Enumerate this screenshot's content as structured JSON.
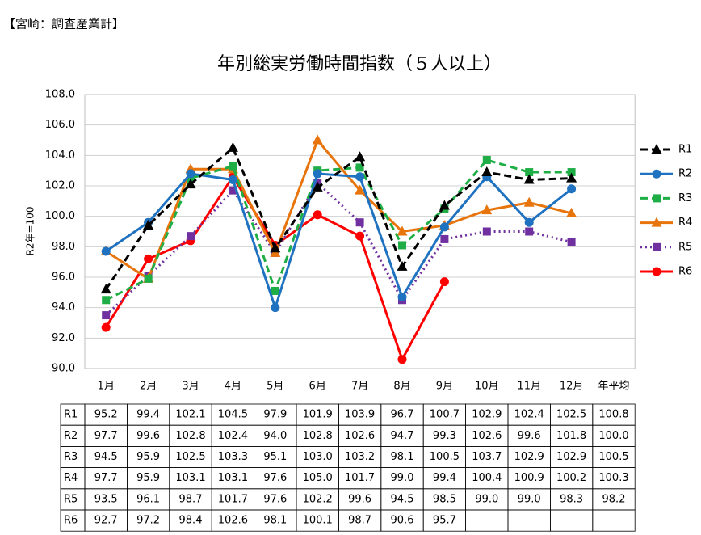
{
  "header": {
    "title": "【宮崎：調査産業計】"
  },
  "chart_data": {
    "type": "line",
    "title": "年別総実労働時間指数（５人以上）",
    "y_label": "R2年=100",
    "categories": [
      "1月",
      "2月",
      "3月",
      "4月",
      "5月",
      "6月",
      "7月",
      "8月",
      "9月",
      "10月",
      "11月",
      "12月"
    ],
    "average_label": "年平均",
    "ylim": [
      90,
      108
    ],
    "yticks": [
      {
        "value": 90,
        "label": "90.0"
      },
      {
        "value": 92,
        "label": "92.0"
      },
      {
        "value": 94,
        "label": "94.0"
      },
      {
        "value": 96,
        "label": "96.0"
      },
      {
        "value": 98,
        "label": "98.0"
      },
      {
        "value": 100,
        "label": "100.0"
      },
      {
        "value": 102,
        "label": "102.0"
      },
      {
        "value": 104,
        "label": "104.0"
      },
      {
        "value": 106,
        "label": "106.0"
      },
      {
        "value": 108,
        "label": "108.0"
      }
    ],
    "grid": true,
    "legend": "right",
    "series": [
      {
        "name": "R1",
        "color": "#000000",
        "dash": "dash",
        "marker": "triangle",
        "values": [
          95.2,
          99.4,
          102.1,
          104.5,
          97.9,
          101.9,
          103.9,
          96.7,
          100.7,
          102.9,
          102.4,
          102.5
        ],
        "value_labels": [
          "95.2",
          "99.4",
          "102.1",
          "104.5",
          "97.9",
          "101.9",
          "103.9",
          "96.7",
          "100.7",
          "102.9",
          "102.4",
          "102.5"
        ],
        "average": 100.8,
        "average_value_label": "100.8"
      },
      {
        "name": "R2",
        "color": "#1f72c0",
        "dash": "solid",
        "marker": "circle",
        "values": [
          97.7,
          99.6,
          102.8,
          102.4,
          94.0,
          102.8,
          102.6,
          94.7,
          99.3,
          102.6,
          99.6,
          101.8
        ],
        "value_labels": [
          "97.7",
          "99.6",
          "102.8",
          "102.4",
          "94.0",
          "102.8",
          "102.6",
          "94.7",
          "99.3",
          "102.6",
          "99.6",
          "101.8"
        ],
        "average": 100.0,
        "average_value_label": "100.0"
      },
      {
        "name": "R3",
        "color": "#1fae45",
        "dash": "dash",
        "marker": "square",
        "values": [
          94.5,
          95.9,
          102.5,
          103.3,
          95.1,
          103.0,
          103.2,
          98.1,
          100.5,
          103.7,
          102.9,
          102.9
        ],
        "value_labels": [
          "94.5",
          "95.9",
          "102.5",
          "103.3",
          "95.1",
          "103.0",
          "103.2",
          "98.1",
          "100.5",
          "103.7",
          "102.9",
          "102.9"
        ],
        "average": 100.5,
        "average_value_label": "100.5"
      },
      {
        "name": "R4",
        "color": "#e8740c",
        "dash": "solid",
        "marker": "triangle",
        "values": [
          97.7,
          95.9,
          103.1,
          103.1,
          97.6,
          105.0,
          101.7,
          99.0,
          99.4,
          100.4,
          100.9,
          100.2
        ],
        "value_labels": [
          "97.7",
          "95.9",
          "103.1",
          "103.1",
          "97.6",
          "105.0",
          "101.7",
          "99.0",
          "99.4",
          "100.4",
          "100.9",
          "100.2"
        ],
        "average": 100.3,
        "average_value_label": "100.3"
      },
      {
        "name": "R5",
        "color": "#7030a0",
        "dash": "dot",
        "marker": "square",
        "values": [
          93.5,
          96.1,
          98.7,
          101.7,
          97.6,
          102.2,
          99.6,
          94.5,
          98.5,
          99.0,
          99.0,
          98.3
        ],
        "value_labels": [
          "93.5",
          "96.1",
          "98.7",
          "101.7",
          "97.6",
          "102.2",
          "99.6",
          "94.5",
          "98.5",
          "99.0",
          "99.0",
          "98.3"
        ],
        "average": 98.2,
        "average_value_label": "98.2"
      },
      {
        "name": "R6",
        "color": "#ff0000",
        "dash": "solid",
        "marker": "circle",
        "values": [
          92.7,
          97.2,
          98.4,
          102.6,
          98.1,
          100.1,
          98.7,
          90.6,
          95.7,
          null,
          null,
          null
        ],
        "value_labels": [
          "92.7",
          "97.2",
          "98.4",
          "102.6",
          "98.1",
          "100.1",
          "98.7",
          "90.6",
          "95.7",
          null,
          null,
          null
        ],
        "average": null,
        "average_value_label": null
      }
    ]
  }
}
